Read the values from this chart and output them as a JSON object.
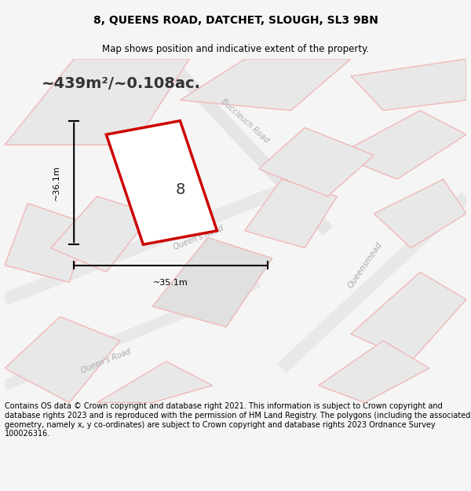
{
  "title_line1": "8, QUEENS ROAD, DATCHET, SLOUGH, SL3 9BN",
  "title_line2": "Map shows position and indicative extent of the property.",
  "area_text": "~439m²/~0.108ac.",
  "dim_width": "~35.1m",
  "dim_height": "~36.1m",
  "property_number": "8",
  "footer_text": "Contains OS data © Crown copyright and database right 2021. This information is subject to Crown copyright and database rights 2023 and is reproduced with the permission of HM Land Registry. The polygons (including the associated geometry, namely x, y co-ordinates) are subject to Crown copyright and database rights 2023 Ordnance Survey 100026316.",
  "bg_color": "#f5f5f5",
  "map_bg": "#f0f0f0",
  "road_fill": "#e8e8e8",
  "road_stroke": "#f0b8b8",
  "property_stroke": "#cc0000",
  "property_fill": "#ffffff",
  "dim_line_color": "#000000",
  "title_color": "#000000",
  "footer_color": "#000000"
}
